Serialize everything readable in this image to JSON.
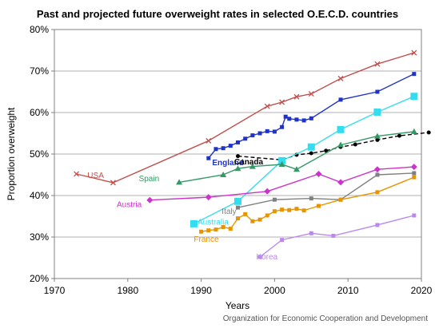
{
  "chart_data": {
    "type": "line",
    "title": "Past and projected future overweight rates in selected O.E.C.D. countries",
    "xlabel": "Years",
    "ylabel": "Proportion overweight",
    "xlim": [
      1970,
      2020
    ],
    "ylim": [
      20,
      80
    ],
    "x_ticks": [
      "1970",
      "1980",
      "1990",
      "2000",
      "2010",
      "2020"
    ],
    "y_ticks": [
      "20%",
      "30%",
      "40%",
      "50%",
      "60%",
      "70%",
      "80%"
    ],
    "grid": true,
    "credit": "Organization for Economic Cooperation and Development",
    "series": [
      {
        "name": "USA",
        "color": "#c0504d",
        "marker": "x",
        "dash": false,
        "points": [
          [
            1973,
            45.2
          ],
          [
            1978,
            43.1
          ],
          [
            1991,
            53.2
          ],
          [
            1999,
            61.5
          ],
          [
            2001,
            62.5
          ],
          [
            2003,
            63.8
          ],
          [
            2005,
            64.5
          ],
          [
            2009,
            68.2
          ],
          [
            2014,
            71.7
          ],
          [
            2019,
            74.4
          ]
        ]
      },
      {
        "name": "England",
        "color": "#1f33c8",
        "marker": "square",
        "dash": false,
        "points": [
          [
            1991,
            49.0
          ],
          [
            1992,
            51.2
          ],
          [
            1993,
            51.4
          ],
          [
            1994,
            52.0
          ],
          [
            1995,
            52.8
          ],
          [
            1996,
            53.7
          ],
          [
            1997,
            54.5
          ],
          [
            1998,
            55.0
          ],
          [
            1999,
            55.5
          ],
          [
            2000,
            55.4
          ],
          [
            2001,
            56.5
          ],
          [
            2001.5,
            59.0
          ],
          [
            2002,
            58.5
          ],
          [
            2003,
            58.3
          ],
          [
            2004,
            58.1
          ],
          [
            2005,
            58.6
          ],
          [
            2009,
            63.1
          ],
          [
            2014,
            65.0
          ],
          [
            2019,
            69.3
          ]
        ]
      },
      {
        "name": "Canada",
        "color": "#000000",
        "marker": "circle",
        "dash": true,
        "points": [
          [
            1995,
            49.5
          ],
          [
            2001,
            48.6
          ],
          [
            2003,
            49.8
          ],
          [
            2005,
            50.2
          ],
          [
            2007,
            50.8
          ],
          [
            2009,
            51.7
          ],
          [
            2011,
            52.3
          ],
          [
            2014,
            53.4
          ],
          [
            2017,
            54.4
          ],
          [
            2021,
            55.2
          ]
        ]
      },
      {
        "name": "Australia",
        "color": "#33ddee",
        "marker": "bigsquare",
        "dash": false,
        "points": [
          [
            1989,
            33.2
          ],
          [
            1995,
            38.6
          ],
          [
            2001,
            48.4
          ],
          [
            2005,
            51.7
          ],
          [
            2009,
            55.9
          ],
          [
            2014,
            60.1
          ],
          [
            2019,
            63.9
          ]
        ]
      },
      {
        "name": "Spain",
        "color": "#339966",
        "marker": "triangle",
        "dash": false,
        "points": [
          [
            1987,
            43.2
          ],
          [
            1993,
            45.0
          ],
          [
            1995,
            46.5
          ],
          [
            1997,
            47.0
          ],
          [
            2001,
            47.5
          ],
          [
            2003,
            46.3
          ],
          [
            2009,
            52.2
          ],
          [
            2014,
            54.3
          ],
          [
            2019,
            55.4
          ]
        ]
      },
      {
        "name": "Austria",
        "color": "#cc33cc",
        "marker": "diamond",
        "dash": false,
        "points": [
          [
            1983,
            38.9
          ],
          [
            1991,
            39.6
          ],
          [
            1999,
            41.0
          ],
          [
            2006,
            45.2
          ],
          [
            2009,
            43.2
          ],
          [
            2014,
            46.3
          ],
          [
            2019,
            46.9
          ]
        ]
      },
      {
        "name": "Italy",
        "color": "#808080",
        "marker": "square",
        "dash": false,
        "points": [
          [
            1995,
            37.1
          ],
          [
            2000,
            39.0
          ],
          [
            2005,
            39.3
          ],
          [
            2009,
            39.0
          ],
          [
            2014,
            45.0
          ],
          [
            2019,
            45.4
          ]
        ]
      },
      {
        "name": "France",
        "color": "#e69500",
        "marker": "square",
        "dash": false,
        "points": [
          [
            1990,
            31.3
          ],
          [
            1991,
            31.6
          ],
          [
            1992,
            31.8
          ],
          [
            1993,
            32.4
          ],
          [
            1994,
            32.0
          ],
          [
            1995,
            34.5
          ],
          [
            1996,
            35.5
          ],
          [
            1997,
            33.8
          ],
          [
            1998,
            34.2
          ],
          [
            1999,
            35.2
          ],
          [
            2000,
            36.2
          ],
          [
            2001,
            36.6
          ],
          [
            2002,
            36.5
          ],
          [
            2003,
            36.8
          ],
          [
            2004,
            36.4
          ],
          [
            2006,
            37.5
          ],
          [
            2009,
            39.0
          ],
          [
            2014,
            40.8
          ],
          [
            2019,
            44.4
          ]
        ]
      },
      {
        "name": "Korea",
        "color": "#bb88ee",
        "marker": "square",
        "dash": false,
        "points": [
          [
            1998,
            25.2
          ],
          [
            2001,
            29.3
          ],
          [
            2005,
            30.9
          ],
          [
            2008,
            30.3
          ],
          [
            2014,
            32.9
          ],
          [
            2019,
            35.2
          ]
        ]
      }
    ],
    "labels": [
      {
        "text": "USA",
        "series": "USA",
        "x": 1974.5,
        "y": 44.2
      },
      {
        "text": "England",
        "series": "England",
        "x": 1991.5,
        "y": 47.3
      },
      {
        "text": "Canada",
        "series": "Canada",
        "x": 1994.5,
        "y": 47.5
      },
      {
        "text": "Spain",
        "series": "Spain",
        "x": 1981.5,
        "y": 43.5
      },
      {
        "text": "Austria",
        "series": "Austria",
        "x": 1978.5,
        "y": 37.2
      },
      {
        "text": "Italy",
        "series": "Italy",
        "x": 1992.8,
        "y": 35.6
      },
      {
        "text": "Australia",
        "series": "Australia",
        "x": 1989.5,
        "y": 33.0
      },
      {
        "text": "France",
        "series": "France",
        "x": 1989.0,
        "y": 28.8
      },
      {
        "text": "Korea",
        "series": "Korea",
        "x": 1997.5,
        "y": 24.6
      }
    ]
  }
}
